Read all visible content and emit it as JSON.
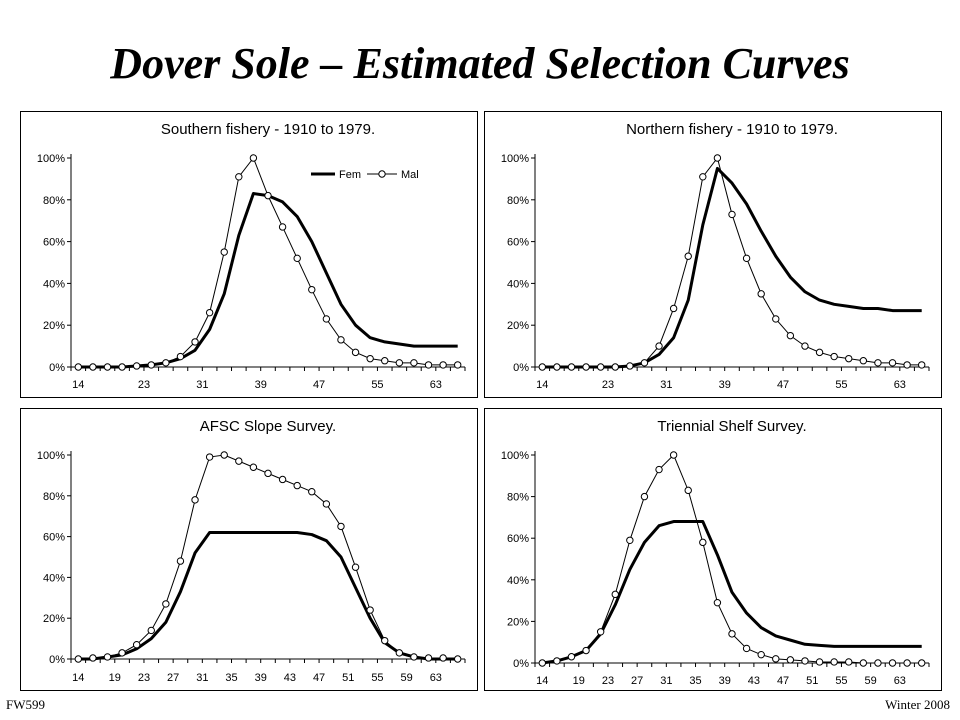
{
  "slide": {
    "title": "Dover Sole – Estimated Selection Curves",
    "footer_left": "FW599",
    "footer_right": "Winter 2008"
  },
  "legend": {
    "fem": "Fem",
    "mal": "Mal"
  },
  "chart_data": [
    {
      "type": "line",
      "title": "Southern fishery - 1910 to 1979.",
      "legend_position": "top-right",
      "x_ticks": [
        14,
        23,
        31,
        39,
        47,
        55,
        63
      ],
      "ylim": [
        0,
        100
      ],
      "y_ticks": [
        "0%",
        "20%",
        "40%",
        "60%",
        "80%",
        "100%"
      ],
      "x": [
        14,
        16,
        18,
        20,
        22,
        24,
        26,
        28,
        30,
        32,
        34,
        36,
        38,
        40,
        42,
        44,
        46,
        48,
        50,
        52,
        54,
        56,
        58,
        60,
        62,
        64,
        66
      ],
      "series": [
        {
          "name": "Fem",
          "values": [
            0,
            0,
            0,
            0,
            0.5,
            1,
            2,
            4,
            8,
            18,
            35,
            63,
            83,
            82,
            79,
            72,
            60,
            45,
            30,
            20,
            14,
            12,
            11,
            10,
            10,
            10,
            10
          ]
        },
        {
          "name": "Mal",
          "values": [
            0,
            0,
            0,
            0,
            0.5,
            1,
            2,
            5,
            12,
            26,
            55,
            91,
            100,
            82,
            67,
            52,
            37,
            23,
            13,
            7,
            4,
            3,
            2,
            2,
            1,
            1,
            1
          ]
        }
      ]
    },
    {
      "type": "line",
      "title": "Northern fishery - 1910 to 1979.",
      "x_ticks": [
        14,
        23,
        31,
        39,
        47,
        55,
        63
      ],
      "ylim": [
        0,
        100
      ],
      "y_ticks": [
        "0%",
        "20%",
        "40%",
        "60%",
        "80%",
        "100%"
      ],
      "x": [
        14,
        16,
        18,
        20,
        22,
        24,
        26,
        28,
        30,
        32,
        34,
        36,
        38,
        40,
        42,
        44,
        46,
        48,
        50,
        52,
        54,
        56,
        58,
        60,
        62,
        64,
        66
      ],
      "series": [
        {
          "name": "Fem",
          "values": [
            0,
            0,
            0,
            0,
            0,
            0,
            0.5,
            2,
            6,
            14,
            32,
            68,
            95,
            88,
            78,
            65,
            53,
            43,
            36,
            32,
            30,
            29,
            28,
            28,
            27,
            27,
            27
          ]
        },
        {
          "name": "Mal",
          "values": [
            0,
            0,
            0,
            0,
            0,
            0,
            0.5,
            2,
            10,
            28,
            53,
            91,
            100,
            73,
            52,
            35,
            23,
            15,
            10,
            7,
            5,
            4,
            3,
            2,
            2,
            1,
            1
          ]
        }
      ]
    },
    {
      "type": "line",
      "title": "AFSC Slope Survey.",
      "x_ticks": [
        14,
        19,
        23,
        27,
        31,
        35,
        39,
        43,
        47,
        51,
        55,
        59,
        63
      ],
      "ylim": [
        0,
        100
      ],
      "y_ticks": [
        "0%",
        "20%",
        "40%",
        "60%",
        "80%",
        "100%"
      ],
      "x": [
        14,
        16,
        18,
        20,
        22,
        24,
        26,
        28,
        30,
        32,
        34,
        36,
        38,
        40,
        42,
        44,
        46,
        48,
        50,
        52,
        54,
        56,
        58,
        60,
        62,
        64,
        66
      ],
      "series": [
        {
          "name": "Fem",
          "values": [
            0,
            0,
            1,
            2,
            5,
            10,
            18,
            33,
            52,
            62,
            62,
            62,
            62,
            62,
            62,
            62,
            61,
            58,
            50,
            35,
            20,
            8,
            3,
            1,
            0,
            0,
            0
          ]
        },
        {
          "name": "Mal",
          "values": [
            0,
            0.5,
            1,
            3,
            7,
            14,
            27,
            48,
            78,
            99,
            100,
            97,
            94,
            91,
            88,
            85,
            82,
            76,
            65,
            45,
            24,
            9,
            3,
            1,
            0.5,
            0.5,
            0
          ]
        }
      ]
    },
    {
      "type": "line",
      "title": "Triennial Shelf Survey.",
      "x_ticks": [
        14,
        19,
        23,
        27,
        31,
        35,
        39,
        43,
        47,
        51,
        55,
        59,
        63
      ],
      "ylim": [
        0,
        100
      ],
      "y_ticks": [
        "0%",
        "20%",
        "40%",
        "60%",
        "80%",
        "100%"
      ],
      "x": [
        14,
        16,
        18,
        20,
        22,
        24,
        26,
        28,
        30,
        32,
        34,
        36,
        38,
        40,
        42,
        44,
        46,
        48,
        50,
        52,
        54,
        56,
        58,
        60,
        62,
        64,
        66
      ],
      "series": [
        {
          "name": "Fem",
          "values": [
            0,
            1,
            3,
            6,
            14,
            28,
            45,
            58,
            66,
            68,
            68,
            68,
            52,
            34,
            24,
            17,
            13,
            11,
            9,
            8.5,
            8,
            8,
            8,
            8,
            8,
            8,
            8
          ]
        },
        {
          "name": "Mal",
          "values": [
            0,
            1,
            3,
            6,
            15,
            33,
            59,
            80,
            93,
            100,
            83,
            58,
            29,
            14,
            7,
            4,
            2,
            1.5,
            1,
            0.5,
            0.5,
            0.5,
            0,
            0,
            0,
            0,
            0
          ]
        }
      ]
    }
  ]
}
